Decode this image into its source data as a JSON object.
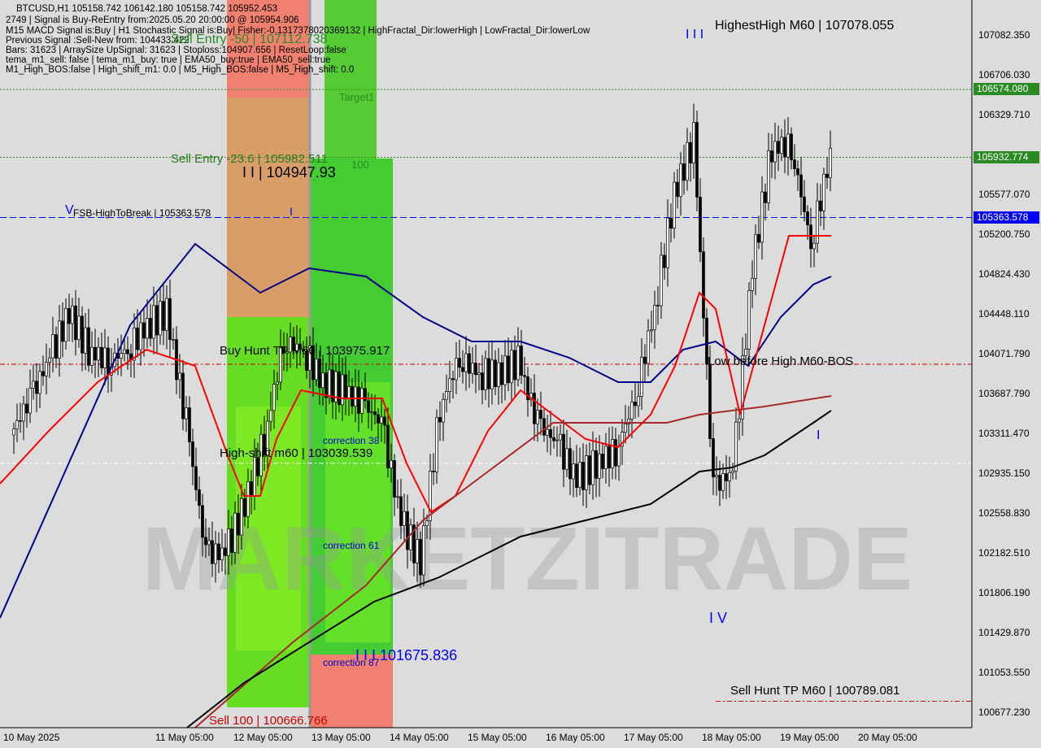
{
  "header": {
    "line1": "BTCUSD,H1  105158.742 106142.180 105158.742 105952.453",
    "line2": "2749 | Signal is Buy-ReEntry from:2025.05.20 20:00:00 @ 105954.906",
    "line3": "M15 MACD Signal is:Buy | H1 Stochastic Signal is:Buy| Fisher:-0.1317378020369132 | HighFractal_Dir:lowerHigh | LowFractal_Dir:lowerLow",
    "line4": "Previous Signal :Sell-New from: 104433.422",
    "line5": "Bars: 31623 | ArraySize UpSignal: 31623 | Stoploss:104907.656 | ResetLoop:false",
    "line6": "tema_m1_sell: false | tema_m1_buy: true | EMA50_buy:true | EMA50_sell:true",
    "line7": "M1_High_BOS:false | High_shift_m1: 0.0 | M5_High_BOS:false | M5_High_shift: 0.0"
  },
  "annotations": {
    "sell_entry_50": "Sell Entry -50 | 107112.738",
    "sell_entry_23": "Sell Entry -23.6 | 105982.511",
    "target1": "Target1",
    "hundred": "100",
    "level_104947": "I I | 104947.93",
    "fsb": "FSB-HighToBreak | 105363.578",
    "buy_hunt": "Buy Hunt TP M60 | 103975.917",
    "high_shift": "High-shift m60 | 103039.539",
    "correction38": "correction 38",
    "correction61": "correction 61",
    "correction87": "correction 87",
    "level_101675": "I I I 101675.836",
    "sell100": "Sell 100 | 100666.766",
    "highest_high": "HighestHigh   M60 | 107078.055",
    "low_before_high": "Low before High   M60-BOS",
    "sell_hunt": "Sell Hunt TP M60 | 100789.081",
    "iii": "I I I",
    "iv": "I V",
    "v": "V",
    "i": "I",
    "watermark": "MARKETZITRADE"
  },
  "price_axis": {
    "ticks": [
      "107082.350",
      "106706.030",
      "106329.710",
      "105577.070",
      "105200.750",
      "104824.430",
      "104448.110",
      "104071.790",
      "103687.790",
      "103311.470",
      "102935.150",
      "102558.830",
      "102182.510",
      "101806.190",
      "101429.870",
      "101053.550",
      "100677.230"
    ],
    "tags": [
      {
        "label": "106574.080",
        "color": "#2a8a24"
      },
      {
        "label": "105932.774",
        "color": "#2a8a24"
      },
      {
        "label": "105363.578",
        "color": "#0000ff"
      }
    ]
  },
  "time_axis": [
    "10 May 2025",
    "11 May 05:00",
    "12 May 05:00",
    "13 May 05:00",
    "14 May 05:00",
    "15 May 05:00",
    "16 May 05:00",
    "17 May 05:00",
    "18 May 05:00",
    "19 May 05:00",
    "20 May 05:00"
  ],
  "chart_data": {
    "type": "candlestick",
    "symbol": "BTCUSD",
    "timeframe": "H1",
    "ylim": [
      100500,
      107400
    ],
    "closes_6h": [
      103307,
      103653,
      104037,
      104460,
      104114,
      103999,
      104114,
      104345,
      104460,
      103422,
      102192,
      102192,
      102653,
      103268,
      104191,
      104114,
      103807,
      103730,
      103614,
      103422,
      102500,
      102115,
      103576,
      104037,
      103884,
      103884,
      103999,
      103422,
      103230,
      102884,
      103038,
      103153,
      103653,
      104499,
      105575,
      106114,
      102807,
      102961,
      104883,
      106037,
      106037,
      105114,
      105960
    ],
    "levels": [
      {
        "price": 106574.08,
        "color": "#2a8a24",
        "style": "dotted"
      },
      {
        "price": 105932.774,
        "color": "#2a8a24",
        "style": "dotted"
      },
      {
        "price": 105363.578,
        "color": "#0000ff",
        "style": "dashed"
      },
      {
        "price": 103975.917,
        "color": "#cc0000",
        "style": "dashdot"
      },
      {
        "price": 103039.539,
        "color": "#ffffff",
        "style": "dashdot"
      },
      {
        "price": 100789.081,
        "color": "#cc0000",
        "style": "dashdot"
      }
    ],
    "colors": {
      "bg": "#dcdcdc",
      "candle": "#000000",
      "ema_blue": "#00008b",
      "ma_red": "#ff0000",
      "ma_brown": "#a52a2a",
      "ma_black": "#000000"
    }
  }
}
